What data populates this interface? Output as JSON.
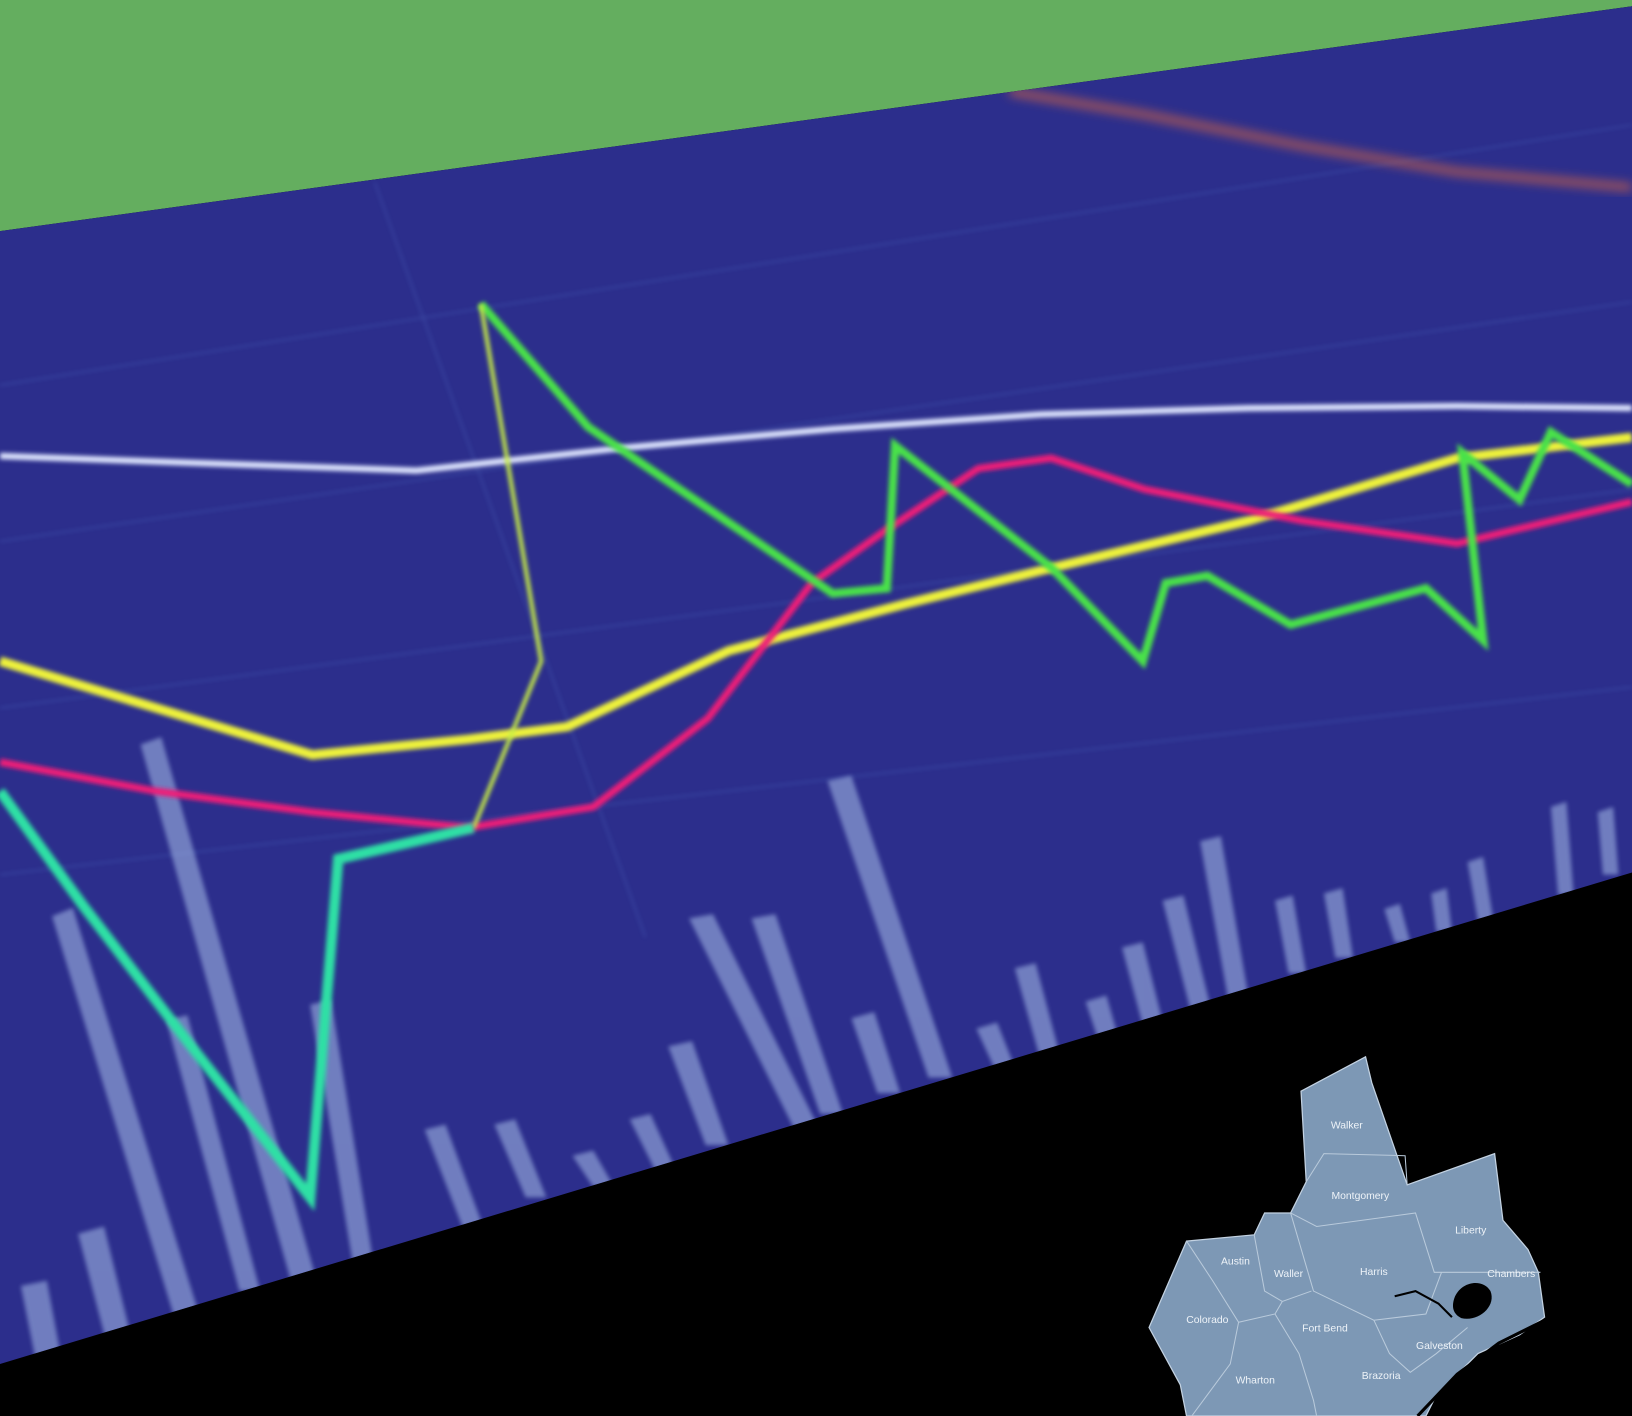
{
  "map": {
    "counties": [
      "Walker",
      "Montgomery",
      "Liberty",
      "Austin",
      "Waller",
      "Harris",
      "Chambers",
      "Colorado",
      "Fort Bend",
      "Galveston",
      "Wharton",
      "Brazoria"
    ]
  }
}
